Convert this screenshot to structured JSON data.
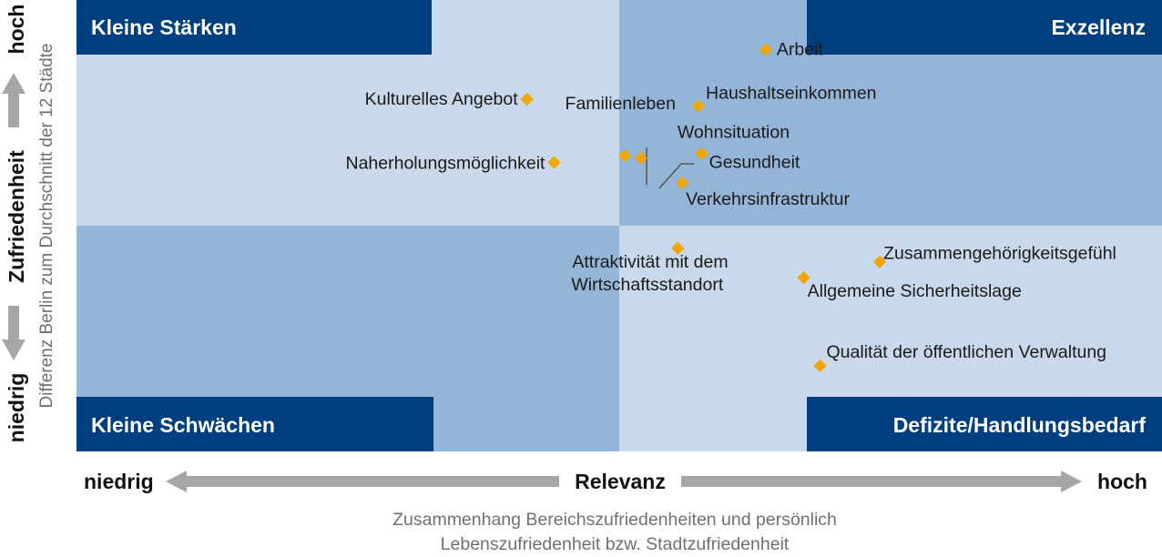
{
  "chart_data": {
    "type": "scatter",
    "title": "",
    "caption_lines": [
      "Zusammenhang Bereichszufriedenheiten und persönlich",
      "Lebenszufriedenheit bzw. Stadtzufriedenheit"
    ],
    "x_axis": {
      "label": "Relevanz",
      "low": "niedrig",
      "high": "hoch"
    },
    "y_axis": {
      "label": "Zufriedenheit",
      "sublabel": "Differenz Berlin zum Durchschnitt der 12 Städte",
      "low": "niedrig",
      "high": "hoch"
    },
    "xlim": [
      0,
      100
    ],
    "ylim": [
      0,
      100
    ],
    "quadrants": [
      {
        "label": "Kleine Stärken",
        "position": "top-left"
      },
      {
        "label": "Exzellenz",
        "position": "top-right"
      },
      {
        "label": "Kleine Schwächen",
        "position": "bottom-left"
      },
      {
        "label": "Defizite/Handlungsbedarf",
        "position": "bottom-right"
      }
    ],
    "points": [
      {
        "label": "Arbeit",
        "x": 63.5,
        "y": 89.0
      },
      {
        "label": "Kulturelles Angebot",
        "x": 41.5,
        "y": 78.0
      },
      {
        "label": "Familienleben",
        "x": 50.5,
        "y": 65.5
      },
      {
        "label": "Haushaltseinkommen",
        "x": 57.3,
        "y": 76.5
      },
      {
        "label": "Wohnsituation",
        "x": 52.0,
        "y": 65.0
      },
      {
        "label": "Naherholungsmöglichkeit",
        "x": 44.0,
        "y": 64.0
      },
      {
        "label": "Gesundheit",
        "x": 57.6,
        "y": 66.0
      },
      {
        "label": "Verkehrsinfrastruktur",
        "x": 55.8,
        "y": 59.5
      },
      {
        "label": "Zusammengehörigkeitsgefühl",
        "x": 74.0,
        "y": 42.0
      },
      {
        "label": "Attraktivität mit dem Wirtschaftsstandort",
        "x": 55.4,
        "y": 45.0
      },
      {
        "label": "Allgemeine Sicherheitslage",
        "x": 67.0,
        "y": 38.5
      },
      {
        "label": "Qualität der öffentlichen Verwaltung",
        "x": 68.5,
        "y": 19.0
      }
    ]
  }
}
